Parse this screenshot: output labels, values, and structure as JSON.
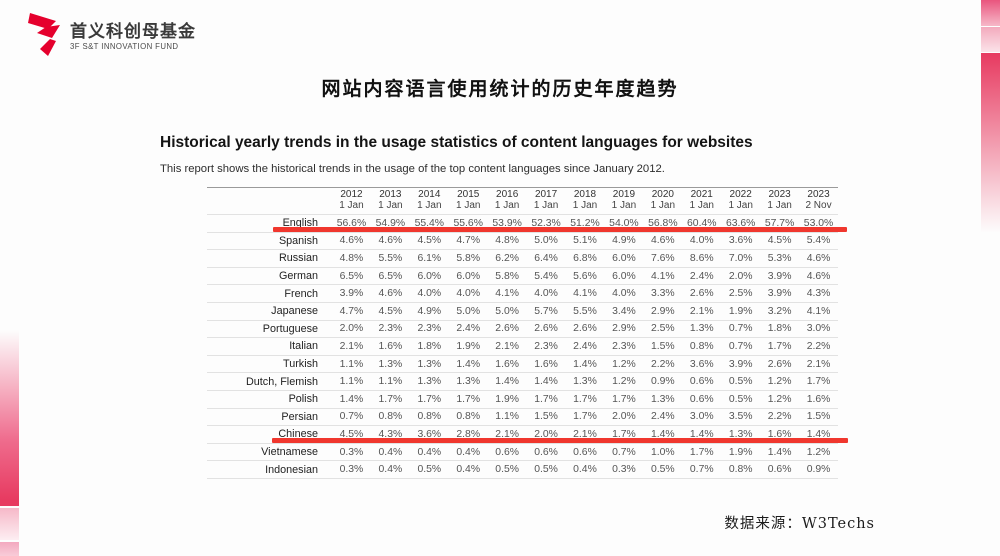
{
  "slide": {
    "logo": {
      "name_cn": "首义科创母基金",
      "name_en": "3F S&T INNOVATION FUND"
    },
    "title": "网站内容语言使用统计的历史年度趋势",
    "source_label": "数据来源：W3Techs"
  },
  "report": {
    "heading": "Historical yearly trends in the usage statistics of content languages for websites",
    "subtitle": "This report shows the historical trends in the usage of the top content languages since January 2012."
  },
  "chart_data": {
    "type": "table",
    "title": "Historical yearly trends in the usage statistics of content languages for websites",
    "columns": [
      {
        "year": "2012",
        "day": "1 Jan"
      },
      {
        "year": "2013",
        "day": "1 Jan"
      },
      {
        "year": "2014",
        "day": "1 Jan"
      },
      {
        "year": "2015",
        "day": "1 Jan"
      },
      {
        "year": "2016",
        "day": "1 Jan"
      },
      {
        "year": "2017",
        "day": "1 Jan"
      },
      {
        "year": "2018",
        "day": "1 Jan"
      },
      {
        "year": "2019",
        "day": "1 Jan"
      },
      {
        "year": "2020",
        "day": "1 Jan"
      },
      {
        "year": "2021",
        "day": "1 Jan"
      },
      {
        "year": "2022",
        "day": "1 Jan"
      },
      {
        "year": "2023",
        "day": "1 Jan"
      },
      {
        "year": "2023",
        "day": "2 Nov"
      }
    ],
    "rows": [
      {
        "language": "English",
        "highlighted": true,
        "values": [
          "56.6%",
          "54.9%",
          "55.4%",
          "55.6%",
          "53.9%",
          "52.3%",
          "51.2%",
          "54.0%",
          "56.8%",
          "60.4%",
          "63.6%",
          "57.7%",
          "53.0%"
        ]
      },
      {
        "language": "Spanish",
        "highlighted": false,
        "values": [
          "4.6%",
          "4.6%",
          "4.5%",
          "4.7%",
          "4.8%",
          "5.0%",
          "5.1%",
          "4.9%",
          "4.6%",
          "4.0%",
          "3.6%",
          "4.5%",
          "5.4%"
        ]
      },
      {
        "language": "Russian",
        "highlighted": false,
        "values": [
          "4.8%",
          "5.5%",
          "6.1%",
          "5.8%",
          "6.2%",
          "6.4%",
          "6.8%",
          "6.0%",
          "7.6%",
          "8.6%",
          "7.0%",
          "5.3%",
          "4.6%"
        ]
      },
      {
        "language": "German",
        "highlighted": false,
        "values": [
          "6.5%",
          "6.5%",
          "6.0%",
          "6.0%",
          "5.8%",
          "5.4%",
          "5.6%",
          "6.0%",
          "4.1%",
          "2.4%",
          "2.0%",
          "3.9%",
          "4.6%"
        ]
      },
      {
        "language": "French",
        "highlighted": false,
        "values": [
          "3.9%",
          "4.6%",
          "4.0%",
          "4.0%",
          "4.1%",
          "4.0%",
          "4.1%",
          "4.0%",
          "3.3%",
          "2.6%",
          "2.5%",
          "3.9%",
          "4.3%"
        ]
      },
      {
        "language": "Japanese",
        "highlighted": false,
        "values": [
          "4.7%",
          "4.5%",
          "4.9%",
          "5.0%",
          "5.0%",
          "5.7%",
          "5.5%",
          "3.4%",
          "2.9%",
          "2.1%",
          "1.9%",
          "3.2%",
          "4.1%"
        ]
      },
      {
        "language": "Portuguese",
        "highlighted": false,
        "values": [
          "2.0%",
          "2.3%",
          "2.3%",
          "2.4%",
          "2.6%",
          "2.6%",
          "2.6%",
          "2.9%",
          "2.5%",
          "1.3%",
          "0.7%",
          "1.8%",
          "3.0%"
        ]
      },
      {
        "language": "Italian",
        "highlighted": false,
        "values": [
          "2.1%",
          "1.6%",
          "1.8%",
          "1.9%",
          "2.1%",
          "2.3%",
          "2.4%",
          "2.3%",
          "1.5%",
          "0.8%",
          "0.7%",
          "1.7%",
          "2.2%"
        ]
      },
      {
        "language": "Turkish",
        "highlighted": false,
        "values": [
          "1.1%",
          "1.3%",
          "1.3%",
          "1.4%",
          "1.6%",
          "1.6%",
          "1.4%",
          "1.2%",
          "2.2%",
          "3.6%",
          "3.9%",
          "2.6%",
          "2.1%"
        ]
      },
      {
        "language": "Dutch, Flemish",
        "highlighted": false,
        "values": [
          "1.1%",
          "1.1%",
          "1.3%",
          "1.3%",
          "1.4%",
          "1.4%",
          "1.3%",
          "1.2%",
          "0.9%",
          "0.6%",
          "0.5%",
          "1.2%",
          "1.7%"
        ]
      },
      {
        "language": "Polish",
        "highlighted": false,
        "values": [
          "1.4%",
          "1.7%",
          "1.7%",
          "1.7%",
          "1.9%",
          "1.7%",
          "1.7%",
          "1.7%",
          "1.3%",
          "0.6%",
          "0.5%",
          "1.2%",
          "1.6%"
        ]
      },
      {
        "language": "Persian",
        "highlighted": false,
        "values": [
          "0.7%",
          "0.8%",
          "0.8%",
          "0.8%",
          "1.1%",
          "1.5%",
          "1.7%",
          "2.0%",
          "2.4%",
          "3.0%",
          "3.5%",
          "2.2%",
          "1.5%"
        ]
      },
      {
        "language": "Chinese",
        "highlighted": true,
        "values": [
          "4.5%",
          "4.3%",
          "3.6%",
          "2.8%",
          "2.1%",
          "2.0%",
          "2.1%",
          "1.7%",
          "1.4%",
          "1.4%",
          "1.3%",
          "1.6%",
          "1.4%"
        ]
      },
      {
        "language": "Vietnamese",
        "highlighted": false,
        "values": [
          "0.3%",
          "0.4%",
          "0.4%",
          "0.4%",
          "0.6%",
          "0.6%",
          "0.6%",
          "0.7%",
          "1.0%",
          "1.7%",
          "1.9%",
          "1.4%",
          "1.2%"
        ]
      },
      {
        "language": "Indonesian",
        "highlighted": false,
        "values": [
          "0.3%",
          "0.4%",
          "0.5%",
          "0.4%",
          "0.5%",
          "0.5%",
          "0.4%",
          "0.3%",
          "0.5%",
          "0.7%",
          "0.8%",
          "0.6%",
          "0.9%"
        ]
      }
    ],
    "highlighted_rows": [
      "English",
      "Chinese"
    ]
  },
  "colors": {
    "logo_red": "#e5002d",
    "highlight_line": "#f0372e",
    "edge_strip_pink": "#e73a60",
    "table_border": "#e2e2e2"
  }
}
